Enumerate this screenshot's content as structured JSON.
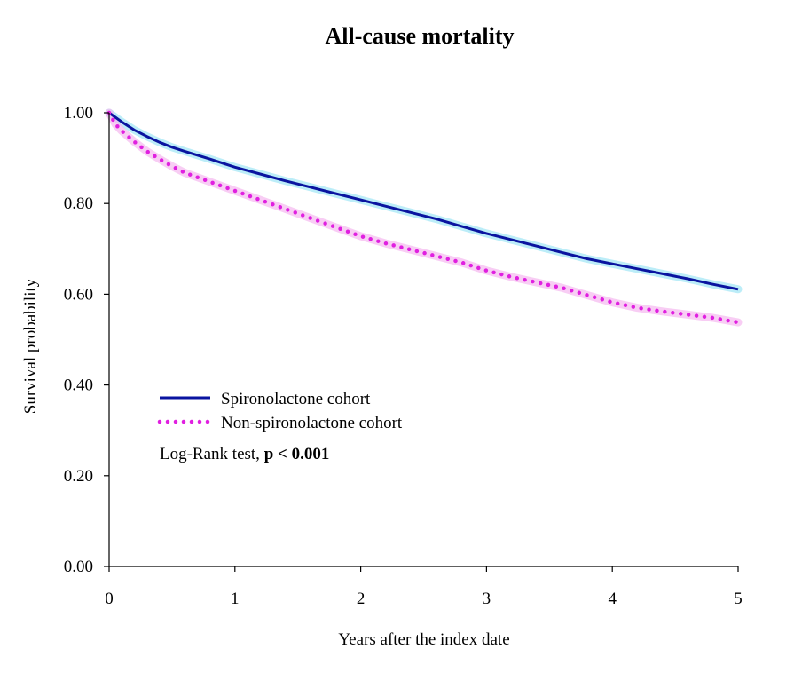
{
  "chart_data": {
    "type": "line",
    "title": "All-cause mortality",
    "xlabel": "Years after the index date",
    "ylabel": "Survival probability",
    "xlim": [
      0,
      5
    ],
    "ylim": [
      0,
      1
    ],
    "x_ticks": [
      "0",
      "1",
      "2",
      "3",
      "4",
      "5"
    ],
    "x_tick_values": [
      0,
      1,
      2,
      3,
      4,
      5
    ],
    "y_ticks": [
      "0.00",
      "0.20",
      "0.40",
      "0.60",
      "0.80",
      "1.00"
    ],
    "y_tick_values": [
      0,
      0.2,
      0.4,
      0.6,
      0.8,
      1.0
    ],
    "grid": false,
    "legend_position": "center-left",
    "annotation": {
      "prefix": "Log-Rank test, ",
      "bold": "p < 0.001"
    },
    "series": [
      {
        "name": "Spironolactone cohort",
        "color": "#0a14a0",
        "band_color": "#9fe6f5",
        "style": "solid",
        "x": [
          0,
          0.05,
          0.1,
          0.2,
          0.3,
          0.4,
          0.5,
          0.6,
          0.8,
          1.0,
          1.2,
          1.4,
          1.6,
          1.8,
          2.0,
          2.2,
          2.4,
          2.6,
          2.8,
          3.0,
          3.2,
          3.4,
          3.6,
          3.8,
          4.0,
          4.2,
          4.4,
          4.6,
          4.8,
          5.0
        ],
        "values": [
          1.0,
          0.99,
          0.98,
          0.962,
          0.948,
          0.935,
          0.924,
          0.915,
          0.898,
          0.88,
          0.865,
          0.85,
          0.836,
          0.822,
          0.808,
          0.794,
          0.78,
          0.766,
          0.75,
          0.734,
          0.72,
          0.706,
          0.692,
          0.678,
          0.667,
          0.656,
          0.645,
          0.634,
          0.622,
          0.611
        ]
      },
      {
        "name": "Non-spironolactone cohort",
        "color": "#e020e0",
        "band_color": "#f5b8f0",
        "style": "dotted",
        "x": [
          0,
          0.05,
          0.1,
          0.2,
          0.3,
          0.4,
          0.5,
          0.6,
          0.8,
          1.0,
          1.2,
          1.4,
          1.6,
          1.8,
          2.0,
          2.2,
          2.4,
          2.6,
          2.8,
          3.0,
          3.2,
          3.4,
          3.6,
          3.8,
          4.0,
          4.2,
          4.4,
          4.6,
          4.8,
          5.0
        ],
        "values": [
          1.0,
          0.975,
          0.96,
          0.936,
          0.915,
          0.898,
          0.882,
          0.868,
          0.848,
          0.828,
          0.808,
          0.788,
          0.768,
          0.748,
          0.728,
          0.712,
          0.698,
          0.684,
          0.67,
          0.652,
          0.638,
          0.626,
          0.614,
          0.598,
          0.582,
          0.57,
          0.562,
          0.555,
          0.548,
          0.538
        ]
      }
    ]
  }
}
